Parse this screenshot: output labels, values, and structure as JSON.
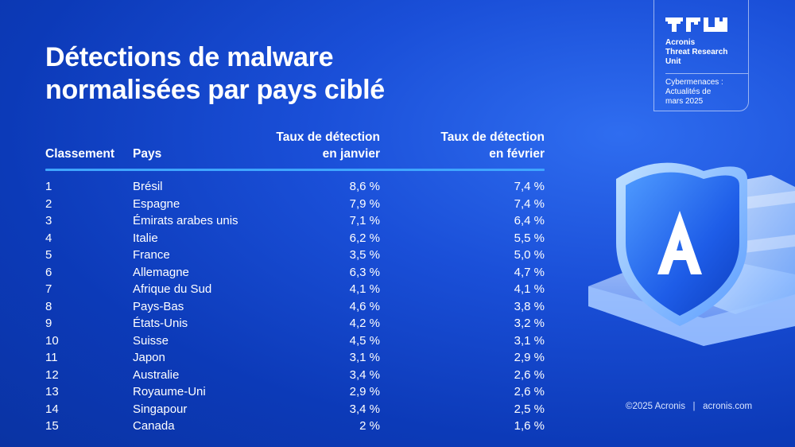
{
  "title": {
    "line1": "Détections de malware",
    "line2": "normalisées par pays ciblé"
  },
  "table": {
    "headers": {
      "rank": "Classement",
      "country": "Pays",
      "jan_line1": "Taux de détection",
      "jan_line2": "en janvier",
      "feb_line1": "Taux de détection",
      "feb_line2": "en février"
    },
    "rows": [
      {
        "rank": "1",
        "country": "Brésil",
        "jan": "8,6 %",
        "feb": "7,4 %"
      },
      {
        "rank": "2",
        "country": "Espagne",
        "jan": "7,9 %",
        "feb": "7,4 %"
      },
      {
        "rank": "3",
        "country": "Émirats arabes unis",
        "jan": "7,1 %",
        "feb": "6,4 %"
      },
      {
        "rank": "4",
        "country": "Italie",
        "jan": "6,2 %",
        "feb": "5,5 %"
      },
      {
        "rank": "5",
        "country": "France",
        "jan": "3,5 %",
        "feb": "5,0 %"
      },
      {
        "rank": "6",
        "country": "Allemagne",
        "jan": "6,3 %",
        "feb": "4,7 %"
      },
      {
        "rank": "7",
        "country": "Afrique du Sud",
        "jan": "4,1 %",
        "feb": "4,1 %"
      },
      {
        "rank": "8",
        "country": "Pays-Bas",
        "jan": "4,6 %",
        "feb": "3,8 %"
      },
      {
        "rank": "9",
        "country": "États-Unis",
        "jan": "4,2 %",
        "feb": "3,2 %"
      },
      {
        "rank": "10",
        "country": "Suisse",
        "jan": "4,5 %",
        "feb": "3,1 %"
      },
      {
        "rank": "11",
        "country": "Japon",
        "jan": "3,1 %",
        "feb": "2,9 %"
      },
      {
        "rank": "12",
        "country": "Australie",
        "jan": "3,4 %",
        "feb": "2,6 %"
      },
      {
        "rank": "13",
        "country": "Royaume-Uni",
        "jan": "2,9 %",
        "feb": "2,6 %"
      },
      {
        "rank": "14",
        "country": "Singapour",
        "jan": "3,4 %",
        "feb": "2,5 %"
      },
      {
        "rank": "15",
        "country": "Canada",
        "jan": "2 %",
        "feb": "1,6 %"
      }
    ]
  },
  "badge": {
    "logo_icon": "tru-logo-icon",
    "org_line1": "Acronis",
    "org_line2": "Threat Research",
    "org_line3": "Unit",
    "sub_line1": "Cybermenaces :",
    "sub_line2": "Actualités de",
    "sub_line3": "mars 2025"
  },
  "illustration": {
    "icon": "acronis-shield-icon",
    "letter": "A"
  },
  "footer": {
    "text": "©2025 Acronis   |   acronis.com"
  },
  "colors": {
    "background": "#1746cc",
    "divider": "#3fa6ff",
    "text": "#ffffff"
  }
}
